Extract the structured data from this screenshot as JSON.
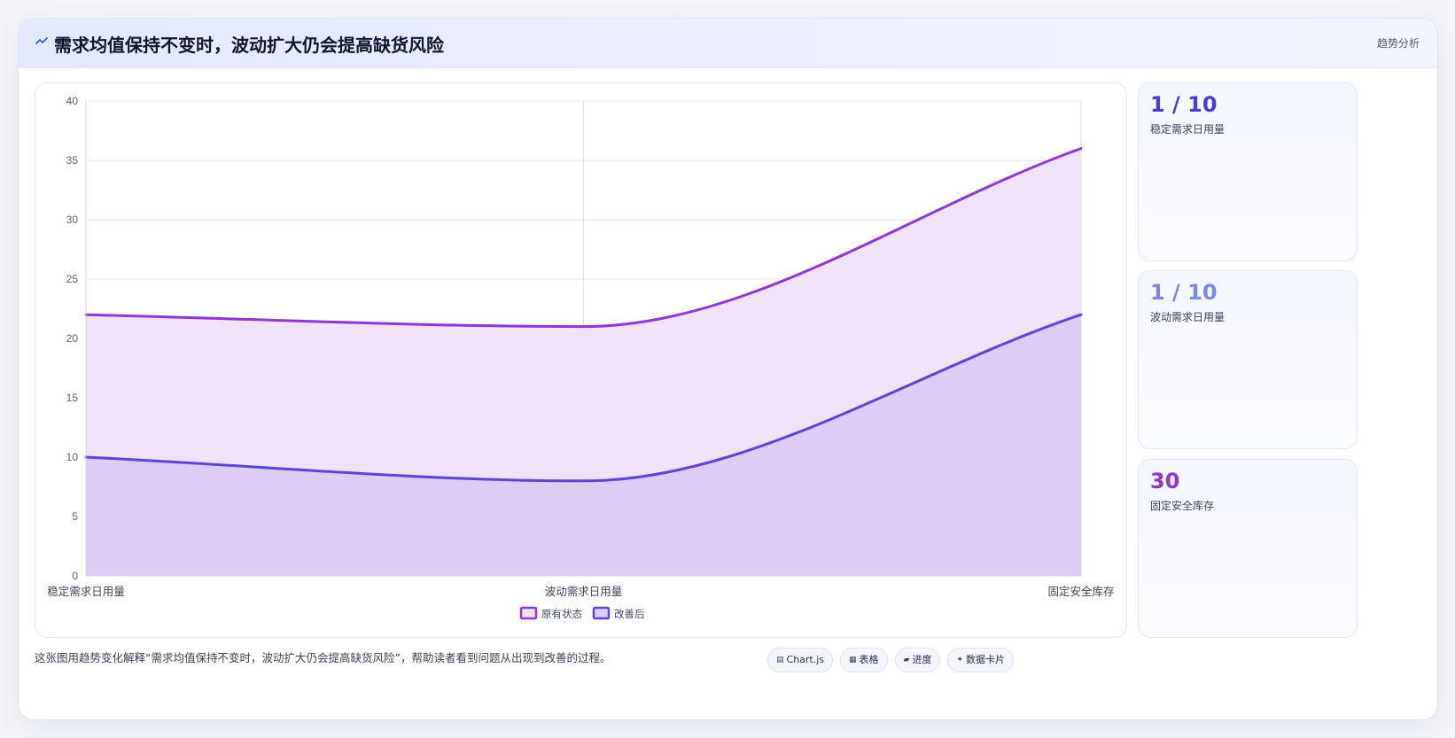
{
  "header": {
    "icon": "trend-line-icon",
    "title": "需求均值保持不变时，波动扩大仍会提高缺货风险",
    "right_label": "趋势分析"
  },
  "stats": [
    {
      "value": "1 / 10",
      "label": "稳定需求日用量",
      "color": "#4a3ad6"
    },
    {
      "value": "1 / 10",
      "label": "波动需求日用量",
      "color": "#7a86e4"
    },
    {
      "value": "30",
      "label": "固定安全库存",
      "color": "#8e35d4"
    }
  ],
  "footer": {
    "text": "这张图用趋势变化解释“需求均值保持不变时，波动扩大仍会提高缺货风险”，帮助读者看到问题从出现到改善的过程。",
    "tags": [
      {
        "icon": "chart-icon",
        "label": "Chart.js"
      },
      {
        "icon": "table-icon",
        "label": "表格"
      },
      {
        "icon": "progress-icon",
        "label": "进度"
      },
      {
        "icon": "card-icon",
        "label": "数据卡片"
      }
    ]
  },
  "chart_data": {
    "type": "area",
    "categories": [
      "稳定需求日用量",
      "波动需求日用量",
      "固定安全库存"
    ],
    "series": [
      {
        "name": "原有状态",
        "values": [
          22,
          21,
          36
        ],
        "color": "#9036d6",
        "fill": "#efe2f9"
      },
      {
        "name": "改善后",
        "values": [
          10,
          8,
          22
        ],
        "color": "#5b45d6",
        "fill": "#dccdf7"
      }
    ],
    "ylim": [
      0,
      40
    ],
    "yticks": [
      0,
      5,
      10,
      15,
      20,
      25,
      30,
      35,
      40
    ],
    "grid": true,
    "legend": "bottom-center"
  }
}
